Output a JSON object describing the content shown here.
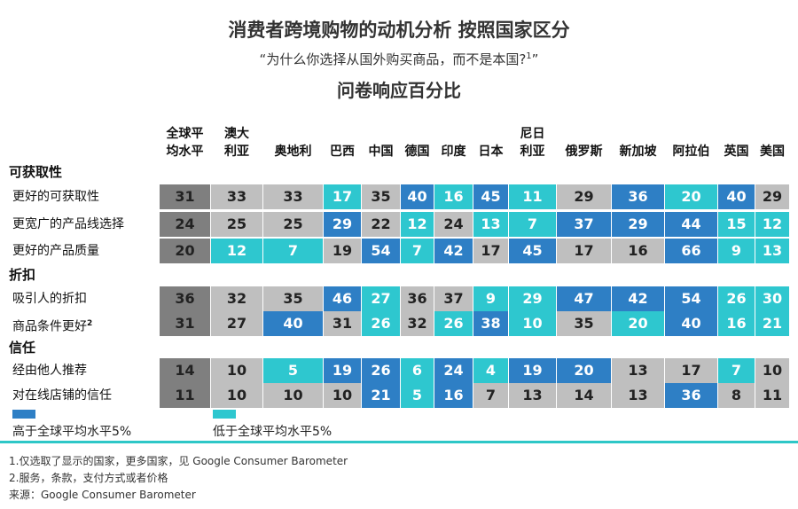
{
  "title": "消费者跨境购物的动机分析  按照国家区分",
  "subtitle": {
    "text": "“为什么你选择从国外购买商品，而不是本国?",
    "note": "1",
    "close": "”"
  },
  "subhead": "问卷响应百分比",
  "colors": {
    "global": "#7f7f7f",
    "neutral": "#bfbfbf",
    "above": "#2e7fc5",
    "below": "#2ec7cf"
  },
  "chart_data": {
    "type": "table",
    "columns": [
      {
        "lines": [
          "全球平",
          "均水平"
        ]
      },
      {
        "lines": [
          "澳大",
          "利亚"
        ]
      },
      {
        "lines": [
          "奥地利"
        ]
      },
      {
        "lines": [
          "巴西"
        ]
      },
      {
        "lines": [
          "中国"
        ]
      },
      {
        "lines": [
          "德国"
        ]
      },
      {
        "lines": [
          "印度"
        ]
      },
      {
        "lines": [
          "日本"
        ]
      },
      {
        "lines": [
          "尼日",
          "利亚"
        ]
      },
      {
        "lines": [
          "俄罗斯"
        ]
      },
      {
        "lines": [
          "新加坡"
        ]
      },
      {
        "lines": [
          "阿拉伯"
        ]
      },
      {
        "lines": [
          "英国"
        ]
      },
      {
        "lines": [
          "美国"
        ]
      }
    ],
    "sections": [
      {
        "name": "可获取性",
        "rows": [
          {
            "label": "更好的可获取性",
            "values": [
              31,
              33,
              33,
              17,
              35,
              40,
              16,
              45,
              11,
              29,
              36,
              20,
              40,
              29
            ],
            "cats": [
              "g",
              "n",
              "n",
              "lo",
              "n",
              "hi",
              "lo",
              "hi",
              "lo",
              "n",
              "hi",
              "lo",
              "hi",
              "n"
            ]
          },
          {
            "label": "更宽广的产品线选择",
            "values": [
              24,
              25,
              25,
              29,
              22,
              12,
              24,
              13,
              7,
              37,
              29,
              44,
              15,
              12
            ],
            "cats": [
              "g",
              "n",
              "n",
              "hi",
              "n",
              "lo",
              "n",
              "lo",
              "lo",
              "hi",
              "hi",
              "hi",
              "lo",
              "lo"
            ]
          },
          {
            "label": "更好的产品质量",
            "values": [
              20,
              12,
              7,
              19,
              54,
              7,
              42,
              17,
              45,
              17,
              16,
              66,
              9,
              13
            ],
            "cats": [
              "g",
              "lo",
              "lo",
              "n",
              "hi",
              "lo",
              "hi",
              "n",
              "hi",
              "n",
              "n",
              "hi",
              "lo",
              "lo"
            ]
          }
        ]
      },
      {
        "name": "折扣",
        "rows": [
          {
            "label": "吸引人的折扣",
            "values": [
              36,
              32,
              35,
              46,
              27,
              36,
              37,
              9,
              29,
              47,
              42,
              54,
              26,
              30
            ],
            "cats": [
              "g",
              "n",
              "n",
              "hi",
              "lo",
              "n",
              "n",
              "lo",
              "lo",
              "hi",
              "hi",
              "hi",
              "lo",
              "lo"
            ]
          },
          {
            "label": "商品条件更好",
            "note": "2",
            "values": [
              31,
              27,
              40,
              31,
              26,
              32,
              26,
              38,
              10,
              35,
              20,
              40,
              16,
              21
            ],
            "cats": [
              "g",
              "n",
              "hi",
              "n",
              "lo",
              "n",
              "lo",
              "hi",
              "lo",
              "n",
              "lo",
              "hi",
              "lo",
              "lo"
            ]
          }
        ]
      },
      {
        "name": "信任",
        "rows": [
          {
            "label": "经由他人推荐",
            "values": [
              14,
              10,
              5,
              19,
              26,
              6,
              24,
              4,
              19,
              20,
              13,
              17,
              7,
              10
            ],
            "cats": [
              "g",
              "n",
              "lo",
              "hi",
              "hi",
              "lo",
              "hi",
              "lo",
              "hi",
              "hi",
              "n",
              "n",
              "lo",
              "n"
            ]
          },
          {
            "label": "对在线店铺的信任",
            "values": [
              11,
              10,
              10,
              10,
              21,
              5,
              16,
              7,
              13,
              14,
              13,
              36,
              8,
              11
            ],
            "cats": [
              "g",
              "n",
              "n",
              "n",
              "hi",
              "lo",
              "hi",
              "n",
              "n",
              "n",
              "n",
              "hi",
              "n",
              "n"
            ]
          }
        ]
      }
    ],
    "legend": [
      {
        "label": "高于全球平均水平5%",
        "color": "#2e7fc5"
      },
      {
        "label": "低于全球平均水平5%",
        "color": "#2ec7cf"
      }
    ]
  },
  "footnotes": [
    "1.仅选取了显示的国家，更多国家，见 Google Consumer Barometer",
    "2.服务，条款，支付方式或者价格",
    "来源：Google Consumer Barometer"
  ]
}
